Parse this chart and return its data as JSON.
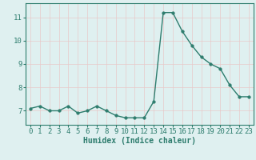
{
  "x": [
    0,
    1,
    2,
    3,
    4,
    5,
    6,
    7,
    8,
    9,
    10,
    11,
    12,
    13,
    14,
    15,
    16,
    17,
    18,
    19,
    20,
    21,
    22,
    23
  ],
  "y": [
    7.1,
    7.2,
    7.0,
    7.0,
    7.2,
    6.9,
    7.0,
    7.2,
    7.0,
    6.8,
    6.7,
    6.7,
    6.7,
    7.4,
    11.2,
    11.2,
    10.4,
    9.8,
    9.3,
    9.0,
    8.8,
    8.1,
    7.6,
    7.6
  ],
  "line_color": "#2e7d6e",
  "marker": "o",
  "markersize": 2.5,
  "linewidth": 1.0,
  "background_color": "#dff0f0",
  "grid_color": "#b8d8d8",
  "xlabel": "Humidex (Indice chaleur)",
  "xlabel_fontsize": 7,
  "tick_fontsize": 6.5,
  "ylim": [
    6.4,
    11.6
  ],
  "yticks": [
    7,
    8,
    9,
    10,
    11
  ],
  "xlim": [
    -0.5,
    23.5
  ],
  "xticks": [
    0,
    1,
    2,
    3,
    4,
    5,
    6,
    7,
    8,
    9,
    10,
    11,
    12,
    13,
    14,
    15,
    16,
    17,
    18,
    19,
    20,
    21,
    22,
    23
  ]
}
